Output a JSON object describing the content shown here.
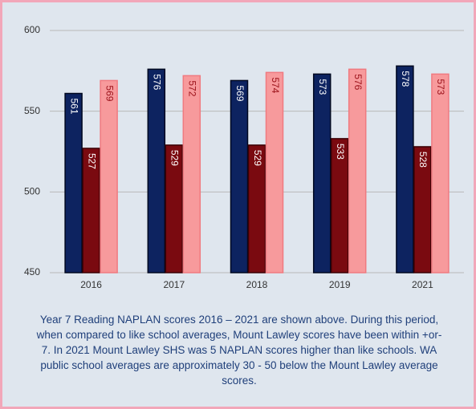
{
  "chart_data": {
    "type": "bar",
    "categories": [
      "2016",
      "2017",
      "2018",
      "2019",
      "2021"
    ],
    "series": [
      {
        "color": "#0d2360",
        "values": [
          561,
          576,
          569,
          573,
          578
        ]
      },
      {
        "color": "#7a0a10",
        "values": [
          527,
          529,
          529,
          533,
          528
        ]
      },
      {
        "color": "#f79a9c",
        "values": [
          569,
          572,
          574,
          576,
          573
        ]
      }
    ],
    "ylim": [
      450,
      600
    ],
    "yticks": [
      450,
      500,
      550,
      600
    ],
    "grid": true,
    "caption": "Year 7 Reading NAPLAN scores 2016 – 2021 are shown above. During this period, when compared to like school averages, Mount Lawley scores have been within +or- 7. In 2021 Mount Lawley SHS was 5 NAPLAN scores higher than like schools. WA public school averages are approximately 30 - 50 below the Mount Lawley average scores."
  }
}
